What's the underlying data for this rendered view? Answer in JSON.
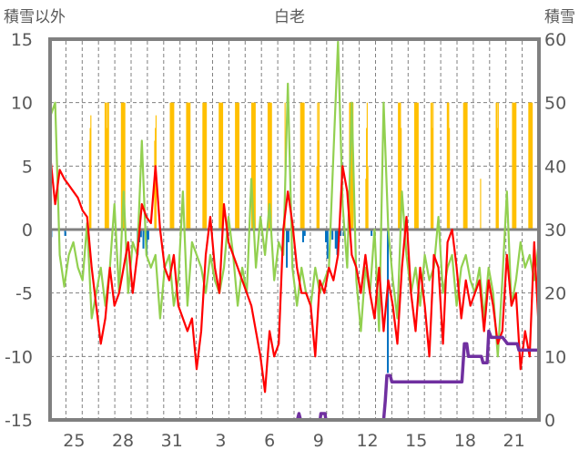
{
  "chart_data": {
    "type": "line",
    "title": "白老",
    "ylabel_left": "積雪以外",
    "ylabel_right": "積雪",
    "ylim_left": [
      -15,
      15
    ],
    "ylim_right": [
      0,
      60
    ],
    "yticks_left": [
      "15",
      "10",
      "5",
      "0",
      "-5",
      "-10",
      "-15"
    ],
    "yticks_right": [
      "60",
      "50",
      "40",
      "30",
      "20",
      "10",
      "0"
    ],
    "x_unit": "days since Jan 24 00:00",
    "xlim": [
      0,
      30
    ],
    "xticks": [
      {
        "day": 1,
        "label": "25"
      },
      {
        "day": 4,
        "label": "28"
      },
      {
        "day": 7,
        "label": "31"
      },
      {
        "day": 10,
        "label": "3"
      },
      {
        "day": 13,
        "label": "6"
      },
      {
        "day": 16,
        "label": "9"
      },
      {
        "day": 19,
        "label": "12"
      },
      {
        "day": 22,
        "label": "15"
      },
      {
        "day": 25,
        "label": "18"
      },
      {
        "day": 28,
        "label": "21"
      }
    ],
    "grid": "horizontal dashed at each 5 units, vertical dashed at each day boundary",
    "colors": {
      "red": "#ff0000",
      "green": "#92d050",
      "sunshine": "#ffc000",
      "precip": "#0070c0",
      "snow": "#7030a0",
      "frame": "#808080"
    },
    "series": [
      {
        "name": "red-line",
        "axis": "left",
        "start_day": 0.06,
        "step_days": 0.28,
        "values": [
          5.5,
          2,
          4.7,
          4,
          3.5,
          3,
          2.5,
          1.5,
          1,
          -3,
          -6,
          -9,
          -7,
          -3,
          -6,
          -5,
          -3,
          -1,
          -5,
          -2,
          2,
          1,
          0.5,
          5,
          0,
          -3,
          -4,
          -2,
          -6,
          -7,
          -8,
          -7,
          -11,
          -8,
          -2,
          1,
          -3,
          -5,
          2,
          -1,
          -2,
          -3,
          -4,
          -5,
          -6,
          -8,
          -10,
          -12.8,
          -8,
          -10,
          -9,
          0,
          3,
          0.5,
          -3,
          -5,
          -5,
          -6,
          -10,
          -4,
          -5,
          -3,
          -4,
          -2,
          5,
          3,
          -2,
          -3,
          -5,
          -2,
          -5,
          -7,
          -3,
          -8,
          -4,
          -6,
          -9,
          -3,
          1,
          -5,
          -8,
          -3,
          -6,
          -10,
          -2,
          -3,
          -9,
          -1,
          0,
          -3,
          -7,
          -4,
          -6,
          -5,
          -4,
          -8,
          -4,
          -6,
          -9,
          -8,
          -2,
          -6,
          -5,
          -11,
          -8,
          -10,
          -1,
          -8
        ]
      },
      {
        "name": "green-line",
        "axis": "left",
        "start_day": 0.06,
        "step_days": 0.28,
        "values": [
          9,
          10,
          -2,
          -4.5,
          -2,
          -1,
          -3,
          -4,
          0.5,
          -7,
          -5,
          -3,
          -6,
          -3,
          2,
          -5,
          3,
          -5,
          -1,
          -2,
          7,
          -2,
          -3,
          -2,
          -7,
          -3,
          -2,
          -6,
          -4,
          3,
          -6,
          -1,
          -2,
          -3,
          -5,
          -2,
          -4,
          -5,
          -3,
          1,
          -2,
          -6,
          -3,
          -5,
          4,
          -3,
          1,
          -2,
          2,
          -4,
          -1,
          -2,
          11.5,
          -3,
          -6,
          -3,
          -5,
          -6,
          -3,
          -5,
          -4,
          -3,
          6,
          14.8,
          2,
          -3,
          10,
          -4,
          -8,
          -3,
          -5,
          0,
          -8,
          10,
          0,
          -4,
          -7,
          3,
          -2,
          -5,
          -3,
          -6,
          -2,
          -4,
          -3,
          1,
          -5,
          -3,
          -2,
          -6,
          -3,
          -2,
          -4,
          -5,
          -3,
          -7,
          -3,
          -5,
          -10,
          -4,
          3,
          -6,
          -4,
          -1,
          -3,
          -2,
          -4,
          -1
        ]
      },
      {
        "name": "sunshine-bars",
        "axis": "left",
        "hours": [
          8,
          9,
          10,
          11,
          12,
          13,
          14,
          15
        ],
        "days": [
          {
            "day": 2,
            "values": [
              0,
              0,
              7,
              8,
              9,
              0,
              0,
              0
            ]
          },
          {
            "day": 3,
            "values": [
              0,
              10,
              10,
              10,
              8,
              10,
              10,
              0
            ]
          },
          {
            "day": 4,
            "values": [
              0,
              10,
              10,
              10,
              10,
              10,
              10,
              0
            ]
          },
          {
            "day": 6,
            "values": [
              0,
              0,
              7,
              8,
              9,
              0,
              0,
              0
            ]
          },
          {
            "day": 7,
            "values": [
              0,
              10,
              10,
              10,
              10,
              10,
              10,
              0
            ]
          },
          {
            "day": 8,
            "values": [
              0,
              10,
              10,
              10,
              10,
              10,
              10,
              0
            ]
          },
          {
            "day": 9,
            "values": [
              0,
              10,
              10,
              10,
              10,
              10,
              10,
              0
            ]
          },
          {
            "day": 10,
            "values": [
              0,
              10,
              10,
              10,
              10,
              10,
              10,
              0
            ]
          },
          {
            "day": 11,
            "values": [
              0,
              10,
              10,
              10,
              10,
              10,
              10,
              0
            ]
          },
          {
            "day": 12,
            "values": [
              0,
              10,
              10,
              10,
              10,
              10,
              10,
              0
            ]
          },
          {
            "day": 13,
            "values": [
              0,
              10,
              10,
              10,
              10,
              10,
              10,
              0
            ]
          },
          {
            "day": 14,
            "values": [
              0,
              0,
              10,
              0,
              0,
              0,
              0,
              0
            ]
          },
          {
            "day": 15,
            "values": [
              0,
              10,
              10,
              10,
              10,
              10,
              10,
              0
            ]
          },
          {
            "day": 16,
            "values": [
              0,
              5,
              10,
              7,
              10,
              0,
              0,
              0
            ]
          },
          {
            "day": 18,
            "values": [
              0,
              10,
              10,
              10,
              10,
              10,
              10,
              0
            ]
          },
          {
            "day": 19,
            "values": [
              0,
              4,
              8,
              10,
              5,
              0,
              0,
              0
            ]
          },
          {
            "day": 21,
            "values": [
              0,
              10,
              10,
              10,
              10,
              8,
              0,
              0
            ]
          },
          {
            "day": 22,
            "values": [
              0,
              10,
              10,
              10,
              10,
              10,
              10,
              0
            ]
          },
          {
            "day": 23,
            "values": [
              0,
              10,
              10,
              8,
              10,
              0,
              0,
              0
            ]
          },
          {
            "day": 24,
            "values": [
              0,
              10,
              10,
              10,
              8,
              0,
              0,
              0
            ]
          },
          {
            "day": 25,
            "values": [
              0,
              10,
              10,
              10,
              10,
              10,
              10,
              0
            ]
          },
          {
            "day": 26,
            "values": [
              0,
              0,
              4,
              0,
              0,
              0,
              0,
              0
            ]
          },
          {
            "day": 27,
            "values": [
              0,
              10,
              10,
              8,
              10,
              0,
              0,
              0
            ]
          },
          {
            "day": 28,
            "values": [
              0,
              10,
              10,
              10,
              10,
              10,
              10,
              0
            ]
          },
          {
            "day": 29,
            "values": [
              0,
              10,
              10,
              10,
              10,
              10,
              10,
              0
            ]
          }
        ]
      },
      {
        "name": "precip-bars",
        "axis": "left",
        "points": [
          [
            0.05,
            -0.6
          ],
          [
            0.9,
            -0.5
          ],
          [
            5.35,
            -2
          ],
          [
            5.45,
            -1
          ],
          [
            5.55,
            -0.6
          ],
          [
            5.7,
            -1.5
          ],
          [
            5.9,
            -2
          ],
          [
            6.0,
            -0.8
          ],
          [
            14.5,
            -3
          ],
          [
            14.6,
            -1
          ],
          [
            15.5,
            -1
          ],
          [
            15.6,
            -0.5
          ],
          [
            16.9,
            -1
          ],
          [
            17.0,
            -2.3
          ],
          [
            17.3,
            -0.8
          ],
          [
            17.5,
            -1.5
          ],
          [
            17.6,
            -2
          ],
          [
            17.7,
            -1
          ],
          [
            17.8,
            -0.5
          ],
          [
            18.0,
            -0.5
          ],
          [
            19.7,
            -0.5
          ],
          [
            20.7,
            -11.3
          ]
        ]
      },
      {
        "name": "snow-depth",
        "axis": "right",
        "points": [
          [
            0,
            0
          ],
          [
            15.2,
            0
          ],
          [
            15.3,
            1
          ],
          [
            15.4,
            0
          ],
          [
            16.6,
            0
          ],
          [
            16.65,
            1
          ],
          [
            16.9,
            1
          ],
          [
            16.95,
            0
          ],
          [
            17.9,
            0
          ],
          [
            18.4,
            null
          ],
          [
            18.45,
            0
          ],
          [
            20.5,
            0
          ],
          [
            20.6,
            3
          ],
          [
            20.7,
            7
          ],
          [
            20.9,
            7
          ],
          [
            21.0,
            6
          ],
          [
            25.3,
            6
          ],
          [
            25.45,
            12
          ],
          [
            25.6,
            12
          ],
          [
            25.7,
            10
          ],
          [
            26.5,
            10
          ],
          [
            26.6,
            9
          ],
          [
            26.85,
            9
          ],
          [
            26.95,
            14
          ],
          [
            27.1,
            13
          ],
          [
            27.8,
            13
          ],
          [
            28.1,
            12
          ],
          [
            28.7,
            12
          ],
          [
            28.8,
            11
          ],
          [
            30,
            11
          ]
        ]
      }
    ]
  }
}
